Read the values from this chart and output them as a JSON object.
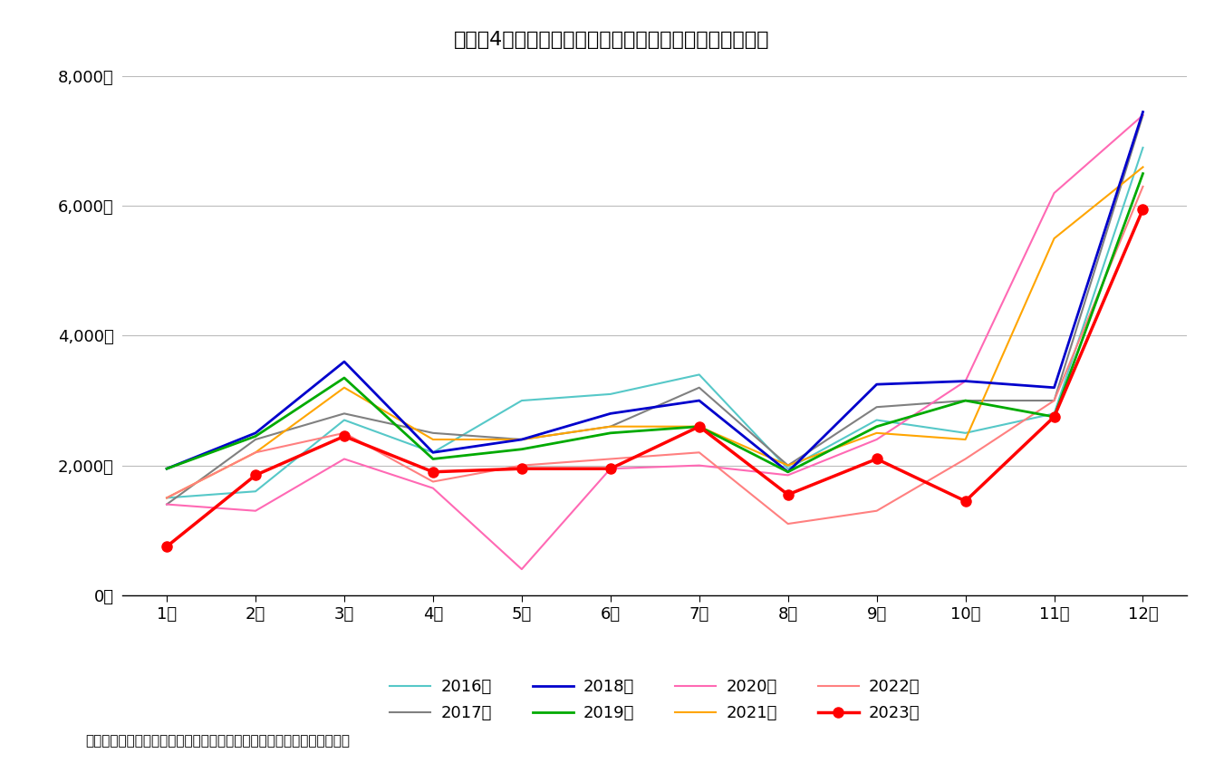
{
  "title": "図表－4　首都圈のマンション新規発売戸数（暦年比較）",
  "source_note": "（出所）不動産経済研究所のデータをもとにニッセイ基礎研究所が作成",
  "ylim": [
    0,
    8000
  ],
  "yticks": [
    0,
    2000,
    4000,
    6000,
    8000
  ],
  "ytick_labels": [
    "0戸",
    "2,000戸",
    "4,000戸",
    "6,000戸",
    "8,000戸"
  ],
  "xtick_labels": [
    "1月",
    "2月",
    "3月",
    "4月",
    "5月",
    "6月",
    "7月",
    "8月",
    "9月",
    "10月",
    "11月",
    "12月"
  ],
  "series": {
    "2016年": {
      "values": [
        1500,
        1600,
        2700,
        2200,
        3000,
        3100,
        3400,
        1950,
        2700,
        2500,
        2800,
        6900
      ],
      "color": "#56C8C8",
      "linewidth": 1.5,
      "marker": null,
      "linestyle": "-",
      "zorder": 3
    },
    "2017年": {
      "values": [
        1400,
        2400,
        2800,
        2500,
        2400,
        2600,
        3200,
        2000,
        2900,
        3000,
        3000,
        7400
      ],
      "color": "#808080",
      "linewidth": 1.5,
      "marker": null,
      "linestyle": "-",
      "zorder": 3
    },
    "2018年": {
      "values": [
        1950,
        2500,
        3600,
        2200,
        2400,
        2800,
        3000,
        1900,
        3250,
        3300,
        3200,
        7450
      ],
      "color": "#0000CC",
      "linewidth": 2.0,
      "marker": null,
      "linestyle": "-",
      "zorder": 4
    },
    "2019年": {
      "values": [
        1950,
        2450,
        3350,
        2100,
        2250,
        2500,
        2600,
        1900,
        2600,
        3000,
        2750,
        6500
      ],
      "color": "#00AA00",
      "linewidth": 2.0,
      "marker": null,
      "linestyle": "-",
      "zorder": 4
    },
    "2020年": {
      "values": [
        1400,
        1300,
        2100,
        1650,
        400,
        1950,
        2000,
        1850,
        2400,
        3300,
        6200,
        7400
      ],
      "color": "#FF69B4",
      "linewidth": 1.5,
      "marker": null,
      "linestyle": "-",
      "zorder": 3
    },
    "2021年": {
      "values": [
        1500,
        2200,
        3200,
        2400,
        2400,
        2600,
        2600,
        2000,
        2500,
        2400,
        5500,
        6600
      ],
      "color": "#FFA500",
      "linewidth": 1.5,
      "marker": null,
      "linestyle": "-",
      "zorder": 3
    },
    "2022年": {
      "values": [
        1500,
        2200,
        2500,
        1750,
        2000,
        2100,
        2200,
        1100,
        1300,
        2100,
        3000,
        6300
      ],
      "color": "#FF8080",
      "linewidth": 1.5,
      "marker": null,
      "linestyle": "-",
      "zorder": 3
    },
    "2023年": {
      "values": [
        750,
        1850,
        2450,
        1900,
        1950,
        1950,
        2600,
        1550,
        2100,
        1450,
        2750,
        5950
      ],
      "color": "#FF0000",
      "linewidth": 2.5,
      "marker": "o",
      "linestyle": "-",
      "zorder": 5
    }
  },
  "legend_order": [
    "2016年",
    "2017年",
    "2018年",
    "2019年",
    "2020年",
    "2021年",
    "2022年",
    "2023年"
  ],
  "background_color": "#FFFFFF",
  "grid_color": "#BBBBBB"
}
